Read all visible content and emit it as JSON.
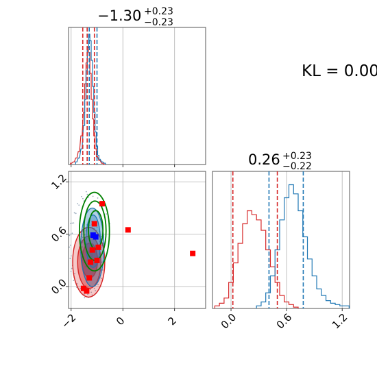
{
  "figure": {
    "kl_label": "KL = 0.00"
  },
  "colors": {
    "red": "#d62728",
    "blue": "#1f77b4",
    "green": "#008000",
    "grid": "#b0b0b0"
  },
  "chart_data": [
    {
      "panel": "marginal-x",
      "type": "histogram",
      "title": "−1.30",
      "title_sup": "+0.23",
      "title_sub": "−0.23",
      "xlim": [
        -2.1,
        3.2
      ],
      "red_quantiles": [
        -1.55,
        -1.38,
        -1.1
      ],
      "blue_quantiles": [
        -1.3,
        -1.0
      ],
      "red_hist": {
        "centers": [
          -2.0,
          -1.9,
          -1.8,
          -1.7,
          -1.6,
          -1.5,
          -1.45,
          -1.4,
          -1.35,
          -1.3,
          -1.25,
          -1.2,
          -1.15,
          -1.1,
          -1.05,
          -1.0,
          -0.9,
          -0.8,
          -0.7
        ],
        "heights": [
          0.01,
          0.02,
          0.05,
          0.1,
          0.22,
          0.4,
          0.62,
          0.78,
          0.9,
          0.86,
          0.7,
          0.5,
          0.35,
          0.22,
          0.12,
          0.06,
          0.03,
          0.01,
          0.0
        ]
      },
      "blue_hist": {
        "centers": [
          -1.8,
          -1.7,
          -1.6,
          -1.5,
          -1.45,
          -1.4,
          -1.35,
          -1.3,
          -1.25,
          -1.2,
          -1.15,
          -1.1,
          -1.05,
          -1.0,
          -0.95,
          -0.9,
          -0.8,
          -0.7
        ],
        "heights": [
          0.02,
          0.05,
          0.12,
          0.3,
          0.5,
          0.72,
          0.9,
          1.0,
          0.95,
          0.8,
          0.6,
          0.4,
          0.25,
          0.14,
          0.07,
          0.04,
          0.02,
          0.01
        ]
      }
    },
    {
      "panel": "joint",
      "type": "scatter",
      "xlim": [
        -2.1,
        3.2
      ],
      "ylim": [
        -0.25,
        1.32
      ],
      "xticks": [
        -2,
        0,
        2
      ],
      "xtick_labels": [
        "−2",
        "0",
        "2"
      ],
      "yticks": [
        0.0,
        0.6,
        1.2
      ],
      "ytick_labels": [
        "0.0",
        "0.6",
        "1.2"
      ],
      "red_points": [
        [
          -1.52,
          -0.02
        ],
        [
          -1.4,
          -0.05
        ],
        [
          -1.3,
          0.1
        ],
        [
          -1.18,
          0.42
        ],
        [
          -1.0,
          0.3
        ],
        [
          -1.1,
          0.72
        ],
        [
          -0.8,
          0.95
        ],
        [
          0.2,
          0.65
        ],
        [
          2.7,
          0.38
        ],
        [
          -1.25,
          0.28
        ],
        [
          -0.95,
          0.45
        ]
      ],
      "blue_points": [
        [
          -1.15,
          0.59
        ],
        [
          -1.05,
          0.57
        ]
      ],
      "red_contours": [
        {
          "cx": -1.32,
          "cy": 0.28,
          "rx": 0.62,
          "ry": 0.4
        },
        {
          "cx": -1.3,
          "cy": 0.28,
          "rx": 0.45,
          "ry": 0.3
        },
        {
          "cx": -1.28,
          "cy": 0.3,
          "rx": 0.3,
          "ry": 0.2
        }
      ],
      "blue_contours": [
        {
          "cx": -1.18,
          "cy": 0.45,
          "rx": 0.45,
          "ry": 0.45
        },
        {
          "cx": -1.15,
          "cy": 0.52,
          "rx": 0.28,
          "ry": 0.3
        }
      ],
      "green_contours": [
        {
          "cx": -1.1,
          "cy": 0.63,
          "rx": 0.58,
          "ry": 0.45
        },
        {
          "cx": -1.08,
          "cy": 0.64,
          "rx": 0.43,
          "ry": 0.34
        },
        {
          "cx": -1.05,
          "cy": 0.65,
          "rx": 0.28,
          "ry": 0.22
        }
      ]
    },
    {
      "panel": "marginal-y",
      "type": "histogram",
      "title": "0.26",
      "title_sup": "+0.23",
      "title_sub": "−0.22",
      "xlim": [
        -0.2,
        1.28
      ],
      "xticks": [
        0.0,
        0.6,
        1.2
      ],
      "xtick_labels": [
        "0.0",
        "0.6",
        "1.2"
      ],
      "red_quantiles": [
        0.02,
        0.5
      ],
      "blue_quantiles": [
        0.41,
        0.78
      ],
      "red_hist": {
        "centers": [
          -0.15,
          -0.1,
          -0.05,
          0.0,
          0.05,
          0.1,
          0.15,
          0.2,
          0.25,
          0.3,
          0.35,
          0.4,
          0.45,
          0.5,
          0.55,
          0.6,
          0.65,
          0.7
        ],
        "heights": [
          0.02,
          0.04,
          0.08,
          0.2,
          0.35,
          0.5,
          0.65,
          0.75,
          0.72,
          0.68,
          0.6,
          0.45,
          0.32,
          0.2,
          0.1,
          0.05,
          0.03,
          0.01
        ]
      },
      "blue_hist": {
        "centers": [
          0.3,
          0.35,
          0.4,
          0.45,
          0.5,
          0.55,
          0.6,
          0.65,
          0.7,
          0.75,
          0.8,
          0.85,
          0.9,
          0.95,
          1.0,
          1.05,
          1.1,
          1.15,
          1.2,
          1.25
        ],
        "heights": [
          0.02,
          0.05,
          0.12,
          0.25,
          0.45,
          0.68,
          0.85,
          0.95,
          0.88,
          0.75,
          0.55,
          0.38,
          0.25,
          0.15,
          0.1,
          0.06,
          0.04,
          0.03,
          0.02,
          0.02
        ]
      }
    }
  ]
}
